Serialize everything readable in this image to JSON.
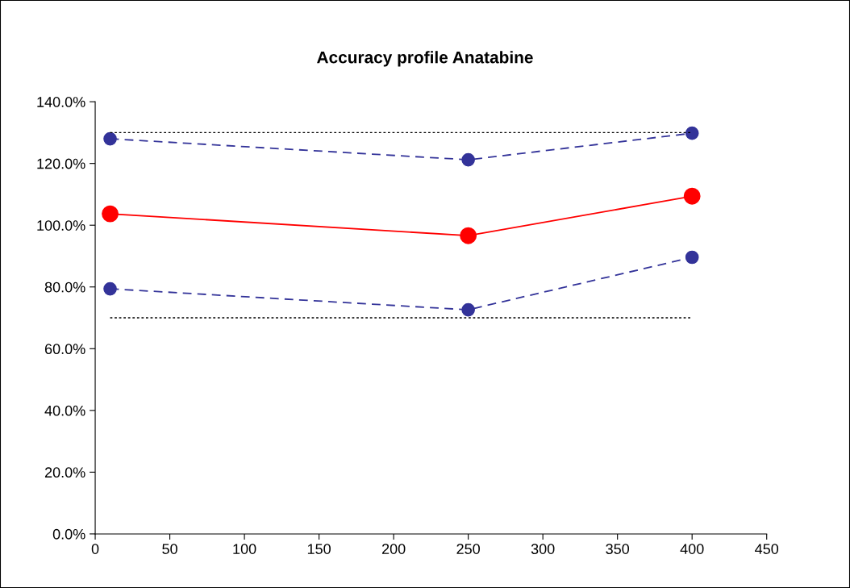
{
  "chart_data": {
    "type": "line",
    "title": "Accuracy profile Anatabine",
    "series": [
      {
        "values": [
          128.0,
          121.2,
          129.8
        ],
        "x": [
          10,
          250,
          400
        ],
        "color": "#333399",
        "line_style": "dashed",
        "marker": "circle"
      },
      {
        "values": [
          103.7,
          96.6,
          109.4
        ],
        "x": [
          10,
          250,
          400
        ],
        "color": "#ff0000",
        "line_style": "solid",
        "marker": "circle"
      },
      {
        "values": [
          79.4,
          72.6,
          89.6
        ],
        "x": [
          10,
          250,
          400
        ],
        "color": "#333399",
        "line_style": "dashed",
        "marker": "circle"
      },
      {
        "values": [
          130,
          130
        ],
        "x": [
          10,
          400
        ],
        "color": "#000000",
        "line_style": "dotted",
        "marker": "none"
      },
      {
        "values": [
          70,
          70
        ],
        "x": [
          10,
          400
        ],
        "color": "#000000",
        "line_style": "dotted",
        "marker": "none"
      }
    ],
    "xlim": [
      0,
      450
    ],
    "xticks": [
      0,
      50,
      100,
      150,
      200,
      250,
      300,
      350,
      400,
      450
    ],
    "ylim": [
      0,
      140
    ],
    "yticks": [
      {
        "value": 0,
        "label": "0.0%"
      },
      {
        "value": 20,
        "label": "20.0%"
      },
      {
        "value": 40,
        "label": "40.0%"
      },
      {
        "value": 60,
        "label": "60.0%"
      },
      {
        "value": 80,
        "label": "80.0%"
      },
      {
        "value": 100,
        "label": "100.0%"
      },
      {
        "value": 120,
        "label": "120.0%"
      },
      {
        "value": 140,
        "label": "140.0%"
      }
    ],
    "grid": false,
    "legend": false
  }
}
